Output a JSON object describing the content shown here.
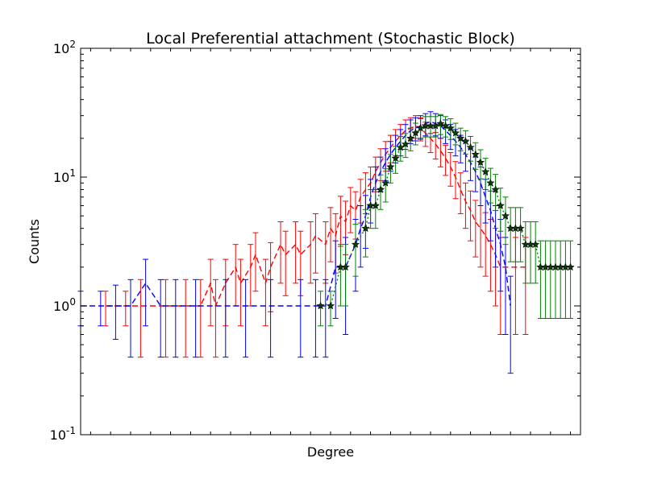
{
  "chart_data": {
    "type": "scatter",
    "title": "Local Preferential attachment (Stochastic Block)",
    "xlabel": "Degree",
    "ylabel": "Counts",
    "yscale": "log",
    "ylim": [
      0.1,
      100
    ],
    "xlim": [
      0,
      100
    ],
    "y_ticks": [
      {
        "value": 0.1,
        "base": "10",
        "exp": "-1"
      },
      {
        "value": 1,
        "base": "10",
        "exp": "0"
      },
      {
        "value": 10,
        "base": "10",
        "exp": "1"
      },
      {
        "value": 100,
        "base": "10",
        "exp": "2"
      }
    ],
    "x_ticks": [],
    "legend": "none",
    "grid": false,
    "series": [
      {
        "color": "#ff0000",
        "line": "dashed",
        "marker": "none",
        "points": [
          [
            5,
            1.0,
            0.3
          ],
          [
            9,
            1.0,
            0.3
          ],
          [
            12,
            1.0,
            0.6
          ],
          [
            17,
            1.0,
            0.6
          ],
          [
            21,
            1.0,
            0.6
          ],
          [
            24,
            1.0,
            0.6
          ],
          [
            26,
            1.5,
            0.8
          ],
          [
            27,
            1.0,
            0.6
          ],
          [
            29,
            1.5,
            0.8
          ],
          [
            31,
            2.0,
            1.0
          ],
          [
            32,
            1.5,
            0.8
          ],
          [
            34,
            2.0,
            1.0
          ],
          [
            35,
            2.5,
            1.2
          ],
          [
            37,
            1.5,
            0.8
          ],
          [
            38,
            2.0,
            1.1
          ],
          [
            40,
            3.0,
            1.5
          ],
          [
            41,
            2.5,
            1.3
          ],
          [
            43,
            3.0,
            1.5
          ],
          [
            44,
            2.5,
            1.3
          ],
          [
            46,
            3.0,
            1.5
          ],
          [
            47,
            3.5,
            1.7
          ],
          [
            49,
            3.0,
            1.5
          ],
          [
            50,
            4.0,
            1.8
          ],
          [
            51,
            3.5,
            1.7
          ],
          [
            52,
            5.0,
            2.1
          ],
          [
            53,
            4.5,
            2.0
          ],
          [
            54,
            6.0,
            2.3
          ],
          [
            55,
            5.5,
            2.2
          ],
          [
            56,
            7.0,
            2.6
          ],
          [
            57,
            8.0,
            2.8
          ],
          [
            58,
            9.0,
            3.0
          ],
          [
            59,
            11.0,
            3.3
          ],
          [
            60,
            13.0,
            3.6
          ],
          [
            61,
            15.0,
            3.9
          ],
          [
            62,
            17.0,
            4.1
          ],
          [
            63,
            19.0,
            4.4
          ],
          [
            64,
            21.0,
            4.6
          ],
          [
            65,
            23.0,
            4.8
          ],
          [
            66,
            24.0,
            4.9
          ],
          [
            67,
            25.0,
            5.0
          ],
          [
            68,
            24.0,
            4.9
          ],
          [
            69,
            22.0,
            4.7
          ],
          [
            70,
            20.0,
            4.5
          ],
          [
            71,
            18.0,
            4.2
          ],
          [
            72,
            16.0,
            4.0
          ],
          [
            73,
            14.0,
            3.7
          ],
          [
            74,
            12.0,
            3.5
          ],
          [
            75,
            10.0,
            3.2
          ],
          [
            76,
            8.0,
            2.8
          ],
          [
            77,
            6.5,
            2.5
          ],
          [
            78,
            5.5,
            2.3
          ],
          [
            79,
            4.5,
            2.1
          ],
          [
            80,
            4.0,
            2.0
          ],
          [
            81,
            3.5,
            1.8
          ],
          [
            82,
            3.0,
            1.7
          ],
          [
            83,
            2.5,
            1.5
          ],
          [
            84,
            2.0,
            1.4
          ],
          [
            85,
            2.0,
            1.4
          ],
          [
            87,
            2.0,
            1.4
          ],
          [
            89,
            2.0,
            1.4
          ]
        ]
      },
      {
        "color": "#0000ff",
        "line": "dashed",
        "marker": "none",
        "points": [
          [
            0,
            1.0,
            0.3
          ],
          [
            4,
            1.0,
            0.3
          ],
          [
            7,
            1.0,
            0.45
          ],
          [
            10,
            1.0,
            0.6
          ],
          [
            13,
            1.5,
            0.8
          ],
          [
            16,
            1.0,
            0.6
          ],
          [
            19,
            1.0,
            0.6
          ],
          [
            23,
            1.0,
            0.6
          ],
          [
            29,
            1.0,
            0.6
          ],
          [
            33,
            1.0,
            0.6
          ],
          [
            38,
            1.0,
            0.6
          ],
          [
            44,
            1.0,
            0.6
          ],
          [
            47,
            1.0,
            0.6
          ],
          [
            49,
            1.0,
            0.6
          ],
          [
            51,
            2.0,
            1.2
          ],
          [
            53,
            2.0,
            1.4
          ],
          [
            55,
            3.0,
            1.7
          ],
          [
            56,
            4.0,
            2.0
          ],
          [
            57,
            5.0,
            2.2
          ],
          [
            58,
            7.0,
            2.6
          ],
          [
            59,
            9.0,
            3.0
          ],
          [
            60,
            11.0,
            3.3
          ],
          [
            61,
            13.0,
            3.6
          ],
          [
            62,
            15.0,
            3.9
          ],
          [
            63,
            17.0,
            4.1
          ],
          [
            64,
            19.0,
            4.4
          ],
          [
            65,
            21.0,
            4.6
          ],
          [
            66,
            23.0,
            4.8
          ],
          [
            67,
            24.0,
            4.9
          ],
          [
            68,
            25.0,
            5.0
          ],
          [
            69,
            26.0,
            5.1
          ],
          [
            70,
            27.0,
            5.2
          ],
          [
            71,
            26.0,
            5.1
          ],
          [
            72,
            25.0,
            5.0
          ],
          [
            73,
            23.0,
            4.8
          ],
          [
            74,
            21.0,
            4.6
          ],
          [
            75,
            19.0,
            4.4
          ],
          [
            76,
            17.0,
            4.1
          ],
          [
            77,
            15.0,
            3.9
          ],
          [
            78,
            13.0,
            3.6
          ],
          [
            79,
            11.0,
            3.3
          ],
          [
            80,
            9.0,
            3.0
          ],
          [
            81,
            7.0,
            2.6
          ],
          [
            82,
            5.5,
            2.3
          ],
          [
            83,
            4.0,
            2.0
          ],
          [
            84,
            3.0,
            1.7
          ],
          [
            85,
            2.0,
            1.4
          ],
          [
            86,
            1.0,
            0.7
          ]
        ]
      },
      {
        "color": "#008000",
        "line": "dotted",
        "marker": "star",
        "points": [
          [
            48,
            1.0,
            0.3
          ],
          [
            50,
            1.0,
            0.3
          ],
          [
            52,
            2.0,
            1.0
          ],
          [
            53,
            2.0,
            1.0
          ],
          [
            55,
            3.0,
            1.3
          ],
          [
            57,
            4.0,
            1.6
          ],
          [
            58,
            6.0,
            2.0
          ],
          [
            59,
            6.0,
            2.0
          ],
          [
            60,
            8.0,
            2.4
          ],
          [
            61,
            9.0,
            2.6
          ],
          [
            62,
            12.0,
            3.0
          ],
          [
            63,
            14.0,
            3.3
          ],
          [
            64,
            17.0,
            3.7
          ],
          [
            65,
            18.0,
            3.8
          ],
          [
            66,
            20.0,
            4.0
          ],
          [
            67,
            22.0,
            4.2
          ],
          [
            68,
            24.0,
            4.4
          ],
          [
            69,
            25.0,
            4.5
          ],
          [
            70,
            25.0,
            4.5
          ],
          [
            71,
            25.0,
            4.5
          ],
          [
            72,
            26.0,
            4.6
          ],
          [
            73,
            25.0,
            4.5
          ],
          [
            74,
            24.0,
            4.4
          ],
          [
            75,
            22.0,
            4.2
          ],
          [
            76,
            20.0,
            4.0
          ],
          [
            77,
            19.0,
            3.9
          ],
          [
            78,
            17.0,
            3.7
          ],
          [
            79,
            15.0,
            3.5
          ],
          [
            80,
            13.0,
            3.3
          ],
          [
            81,
            11.0,
            3.0
          ],
          [
            82,
            9.0,
            2.7
          ],
          [
            83,
            8.0,
            2.5
          ],
          [
            84,
            6.0,
            2.2
          ],
          [
            85,
            5.0,
            2.0
          ],
          [
            86,
            4.0,
            1.8
          ],
          [
            87,
            4.0,
            1.8
          ],
          [
            88,
            4.0,
            1.8
          ],
          [
            89,
            3.0,
            1.5
          ],
          [
            90,
            3.0,
            1.5
          ],
          [
            91,
            3.0,
            1.5
          ],
          [
            92,
            2.0,
            1.2
          ],
          [
            93,
            2.0,
            1.2
          ],
          [
            94,
            2.0,
            1.2
          ],
          [
            95,
            2.0,
            1.2
          ],
          [
            96,
            2.0,
            1.2
          ],
          [
            97,
            2.0,
            1.2
          ],
          [
            98,
            2.0,
            1.2
          ]
        ]
      }
    ]
  }
}
